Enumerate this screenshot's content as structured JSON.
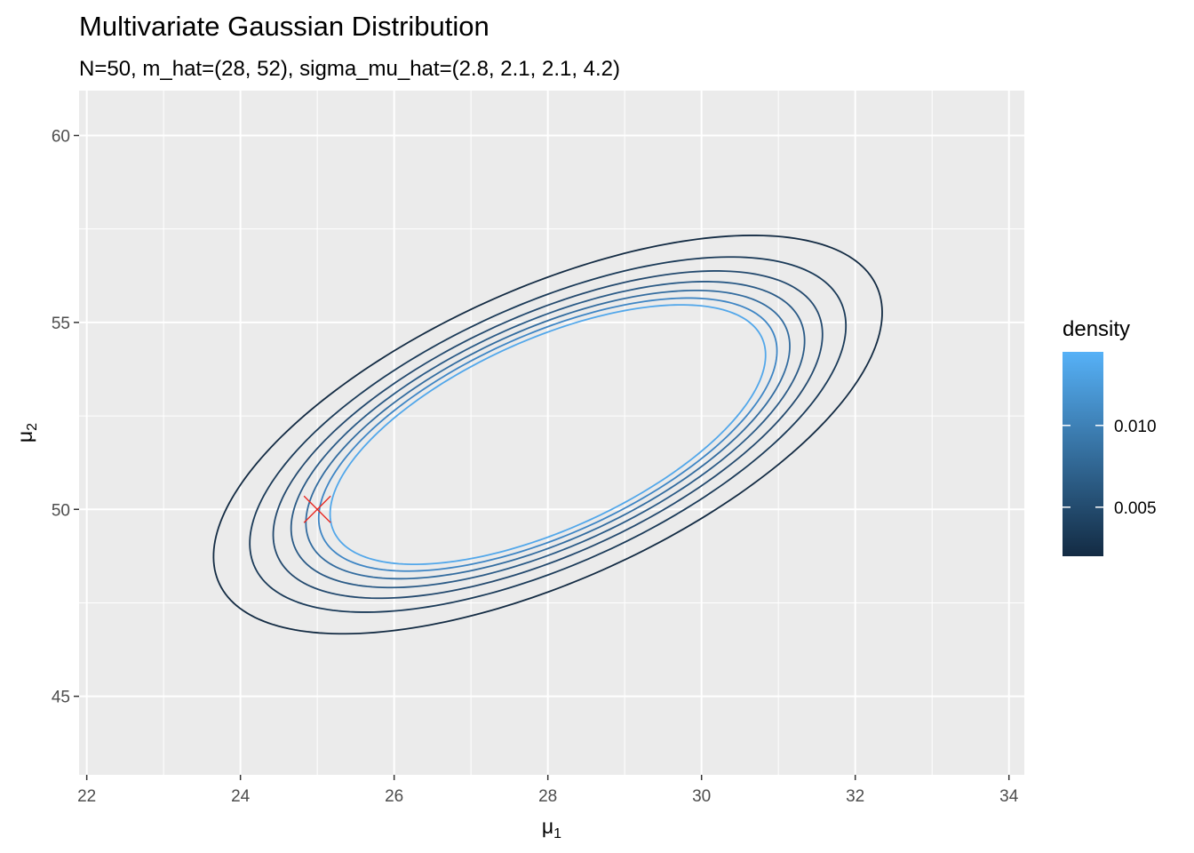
{
  "chart_data": {
    "type": "contour",
    "title": "Multivariate Gaussian Distribution",
    "subtitle": "N=50, m_hat=(28, 52), sigma_mu_hat=(2.8, 2.1, 2.1, 4.2)",
    "xlabel_base": "μ",
    "xlabel_sub": "1",
    "ylabel_base": "μ",
    "ylabel_sub": "2",
    "xlim": [
      21.9,
      34.2
    ],
    "ylim": [
      42.9,
      61.2
    ],
    "x_ticks": [
      22,
      24,
      26,
      28,
      30,
      32,
      34
    ],
    "x_tick_labels": [
      "22",
      "24",
      "26",
      "28",
      "30",
      "32",
      "34"
    ],
    "y_ticks": [
      45,
      50,
      55,
      60
    ],
    "y_tick_labels": [
      "45",
      "50",
      "55",
      "60"
    ],
    "grid": true,
    "distribution": {
      "mean": [
        28,
        52
      ],
      "covariance": [
        [
          2.8,
          2.1
        ],
        [
          2.1,
          4.2
        ]
      ]
    },
    "contour_levels": [
      {
        "name": "level-1",
        "density": 0.002,
        "color": "#132b43"
      },
      {
        "name": "level-2",
        "density": 0.004,
        "color": "#1a3a58"
      },
      {
        "name": "level-3",
        "density": 0.006,
        "color": "#23496e"
      },
      {
        "name": "level-4",
        "density": 0.008,
        "color": "#2a5a86"
      },
      {
        "name": "level-5",
        "density": 0.01,
        "color": "#336c9f"
      },
      {
        "name": "level-6",
        "density": 0.012,
        "color": "#3e85c4"
      },
      {
        "name": "level-7",
        "density": 0.014,
        "color": "#52a7ea"
      }
    ],
    "marker": {
      "x": 25,
      "y": 50,
      "shape": "x",
      "color": "#e8251f"
    },
    "legend": {
      "title": "density",
      "position": "right",
      "range": [
        0.002,
        0.0145
      ],
      "color_low": "#132b43",
      "color_high": "#56b1f7",
      "ticks": [
        0.005,
        0.01
      ],
      "tick_labels": [
        "0.005",
        "0.010"
      ]
    }
  }
}
